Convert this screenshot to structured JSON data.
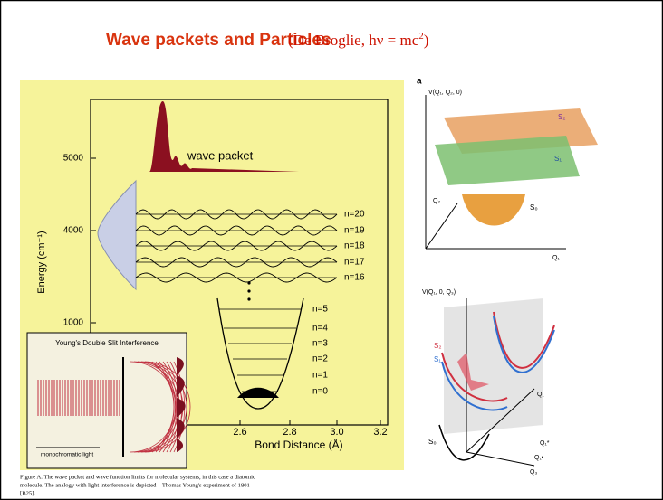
{
  "header": {
    "title": "Wave packets and Particles",
    "subtitle": [
      "(De Broglie, hν = mc",
      "2",
      ")"
    ]
  },
  "left_figure": {
    "wave_packet_label": "wave packet",
    "y_axis_label": "Energy (cm⁻¹)",
    "y_ticks": [
      "5000",
      "4000",
      "1000"
    ],
    "x_axis_label": "Bond Distance (Å)",
    "x_ticks": [
      "2.6",
      "2.8",
      "3.0",
      "3.2"
    ],
    "upper_levels": [
      "n=20",
      "n=19",
      "n=18",
      "n=17",
      "n=16"
    ],
    "lower_levels": [
      "n=5",
      "n=4",
      "n=3",
      "n=2",
      "n=1",
      "n=0"
    ],
    "inset": {
      "title": "Young's Double Slit Interference",
      "label": "monochromatic light"
    },
    "caption": [
      "Figure A. The wave packet and wave function limits for molecular systems, in this case a diatomic",
      "molecule. The analogy with light interference is depicted – Thomas Young's experiment of 1801",
      "[B25]."
    ]
  },
  "right_figure": {
    "top": {
      "panel_label": "a",
      "axis_label": "V(Q₁, Q₂, 0)",
      "states": [
        "S₂",
        "S₁",
        "S₀"
      ],
      "axes": [
        "Q₂",
        "Q₁"
      ]
    },
    "bottom": {
      "axis_label": "V(Q₁, 0, Q₃)",
      "states": [
        "S₂",
        "S₁",
        "S₀"
      ],
      "axes": [
        "Q₁",
        "Q₁*",
        "Q₁•",
        "Q₃"
      ]
    }
  }
}
